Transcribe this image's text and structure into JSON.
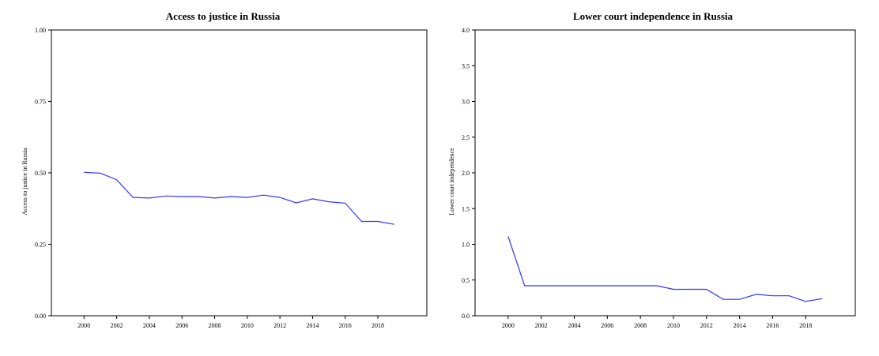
{
  "chart_data": [
    {
      "type": "line",
      "title": "Access to justice in Russia",
      "xlabel": "",
      "ylabel": "Access to justice in Russia",
      "x": [
        2000,
        2001,
        2002,
        2003,
        2004,
        2005,
        2006,
        2007,
        2008,
        2009,
        2010,
        2011,
        2012,
        2013,
        2014,
        2015,
        2016,
        2017,
        2018,
        2019
      ],
      "series": [
        {
          "values": [
            0.502,
            0.499,
            0.476,
            0.414,
            0.412,
            0.419,
            0.417,
            0.417,
            0.412,
            0.417,
            0.414,
            0.422,
            0.414,
            0.395,
            0.409,
            0.399,
            0.394,
            0.33,
            0.33,
            0.32
          ],
          "color": "#3333ff"
        }
      ],
      "xticks": [
        "2000",
        "2002",
        "2004",
        "2006",
        "2008",
        "2010",
        "2012",
        "2014",
        "2016",
        "2018"
      ],
      "yticks": [
        "0.00",
        "0.25",
        "0.50",
        "0.75",
        "1.00"
      ],
      "ylim": [
        0,
        1
      ],
      "xlim": [
        1998,
        2021
      ],
      "grid": false
    },
    {
      "type": "line",
      "title": "Lower court independence in Russia",
      "xlabel": "",
      "ylabel": "Lower court independence",
      "x": [
        2000,
        2001,
        2002,
        2003,
        2004,
        2005,
        2006,
        2007,
        2008,
        2009,
        2010,
        2011,
        2012,
        2013,
        2014,
        2015,
        2016,
        2017,
        2018,
        2019
      ],
      "series": [
        {
          "values": [
            1.11,
            0.42,
            0.42,
            0.42,
            0.42,
            0.42,
            0.42,
            0.42,
            0.42,
            0.42,
            0.37,
            0.37,
            0.37,
            0.23,
            0.23,
            0.3,
            0.28,
            0.28,
            0.2,
            0.24
          ],
          "color": "#3333ff"
        }
      ],
      "xticks": [
        "2000",
        "2002",
        "2004",
        "2006",
        "2008",
        "2010",
        "2012",
        "2014",
        "2016",
        "2018"
      ],
      "yticks": [
        "0.0",
        "0.5",
        "1.0",
        "1.5",
        "2.0",
        "2.5",
        "3.0",
        "3.5",
        "4.0"
      ],
      "ylim": [
        0,
        4
      ],
      "xlim": [
        1998,
        2021
      ],
      "grid": false
    }
  ]
}
